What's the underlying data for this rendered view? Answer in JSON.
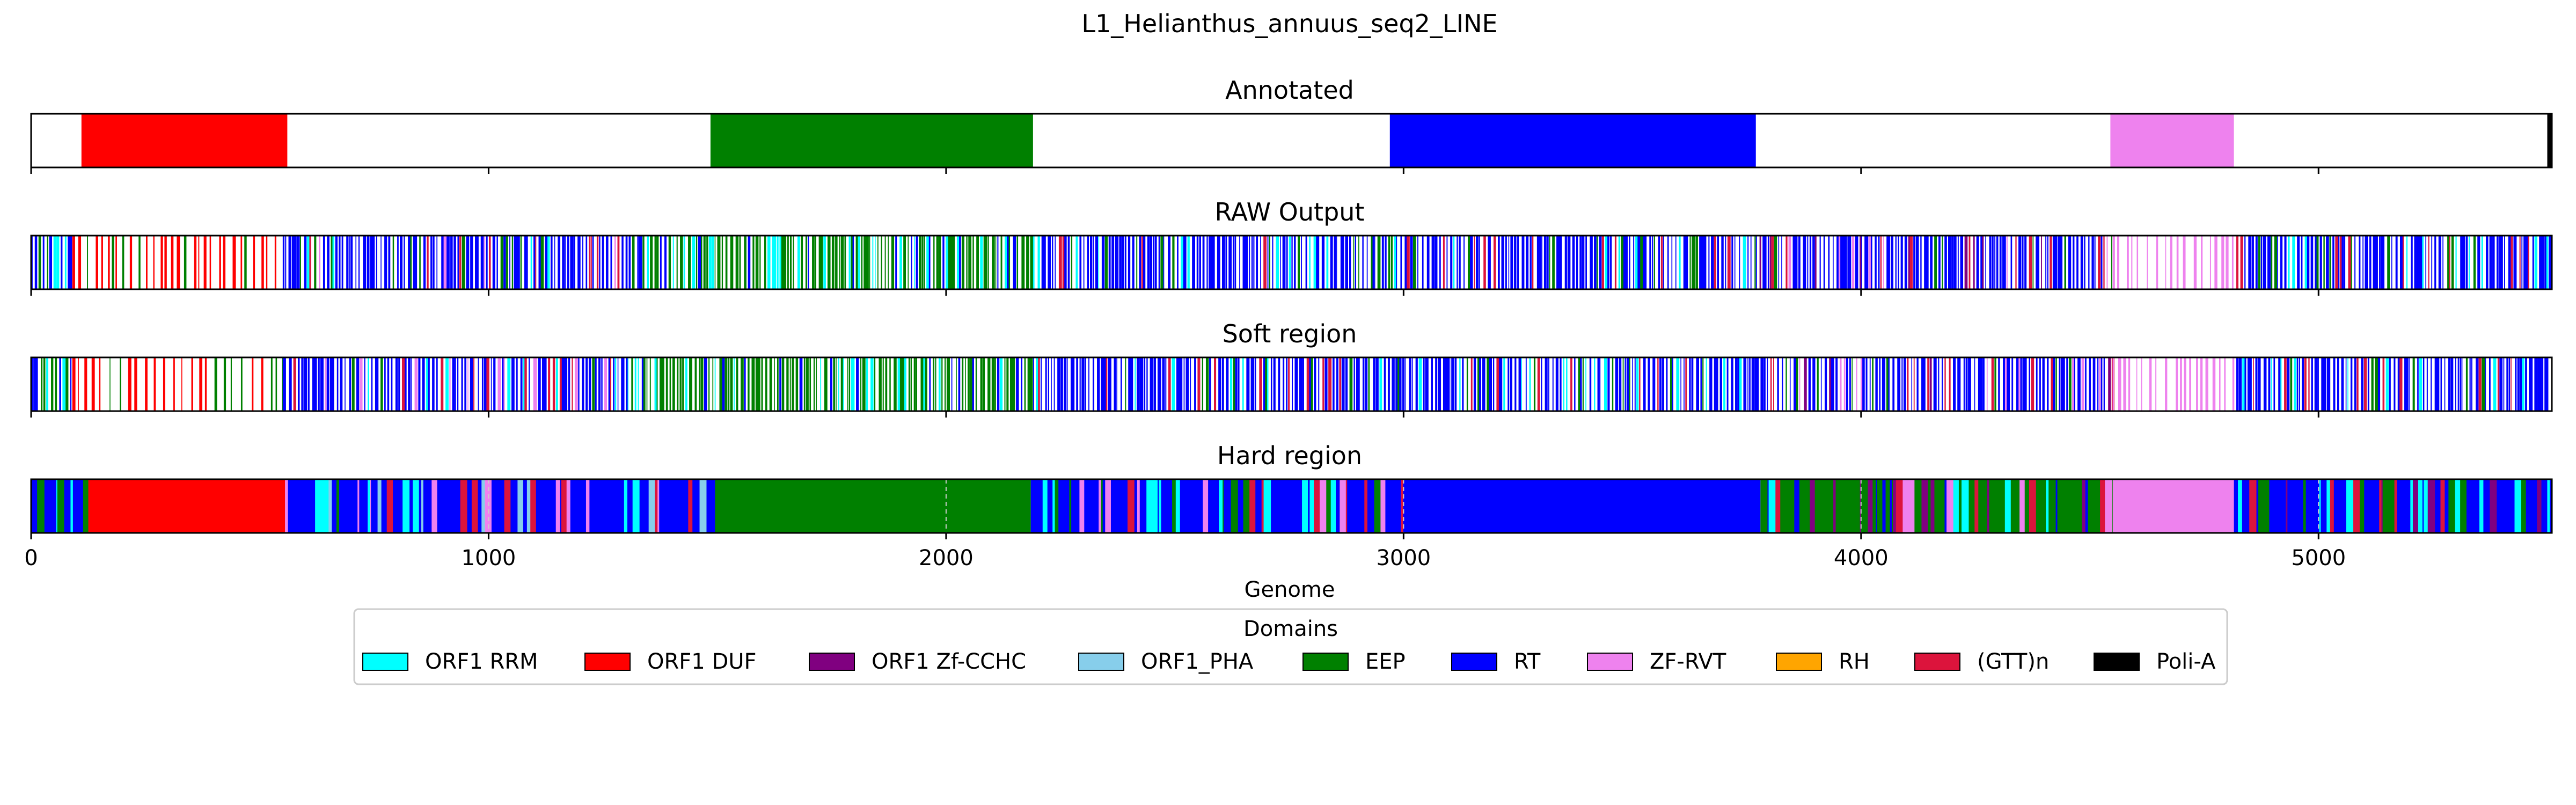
{
  "chart_data": {
    "type": "track",
    "title": "L1_Helianthus_annuus_seq2_LINE",
    "xlabel": "Genome",
    "xlim": [
      0,
      5510
    ],
    "xticks": [
      0,
      1000,
      2000,
      3000,
      4000,
      5000
    ],
    "tick_labels": [
      "0",
      "1000",
      "2000",
      "3000",
      "4000",
      "5000"
    ],
    "colors": {
      "ORF1 RRM": "#00ffff",
      "ORF1 DUF": "#ff0000",
      "ORF1 Zf-CCHC": "#800080",
      "ORF1_PHA": "#87ceeb",
      "EEP": "#008000",
      "RT": "#0000ff",
      "ZF-RVT": "#ee82ee",
      "RH": "#ffa500",
      "(GTT)n": "#dc143c",
      "Poli-A": "#000000"
    },
    "legend": {
      "title": "Domains",
      "placement": "bottom-center",
      "entries": [
        "ORF1 RRM",
        "ORF1 DUF",
        "ORF1 Zf-CCHC",
        "ORF1_PHA",
        "EEP",
        "RT",
        "ZF-RVT",
        "RH",
        "(GTT)n",
        "Poli-A"
      ]
    },
    "tracks": [
      {
        "title": "Annotated",
        "style": "segments",
        "segments": [
          {
            "domain": "ORF1 DUF",
            "start": 110,
            "end": 560
          },
          {
            "domain": "EEP",
            "start": 1485,
            "end": 2190
          },
          {
            "domain": "RT",
            "start": 2970,
            "end": 3770
          },
          {
            "domain": "ZF-RVT",
            "start": 4545,
            "end": 4815
          },
          {
            "domain": "Poli-A",
            "start": 5500,
            "end": 5510
          }
        ]
      },
      {
        "title": "RAW Output",
        "style": "sparse",
        "regions": [
          {
            "domain": "RT",
            "start": 0,
            "end": 90,
            "mix": [
              "ORF1 RRM",
              "EEP"
            ]
          },
          {
            "domain": "ORF1 DUF",
            "start": 90,
            "end": 550,
            "mix": [
              "EEP"
            ]
          },
          {
            "domain": "RT",
            "start": 550,
            "end": 1300,
            "mix": [
              "EEP",
              "ORF1 RRM",
              "ZF-RVT",
              "(GTT)n"
            ]
          },
          {
            "domain": "EEP",
            "start": 1300,
            "end": 2190,
            "mix": [
              "RT",
              "ORF1 RRM"
            ]
          },
          {
            "domain": "RT",
            "start": 2190,
            "end": 3770,
            "mix": [
              "EEP",
              "ORF1 RRM",
              "(GTT)n"
            ]
          },
          {
            "domain": "RT",
            "start": 3770,
            "end": 4550,
            "mix": [
              "EEP",
              "ZF-RVT",
              "(GTT)n",
              "ORF1 Zf-CCHC"
            ]
          },
          {
            "domain": "ZF-RVT",
            "start": 4550,
            "end": 4820,
            "mix": []
          },
          {
            "domain": "RT",
            "start": 4820,
            "end": 5510,
            "mix": [
              "EEP",
              "ORF1 RRM",
              "(GTT)n"
            ]
          }
        ]
      },
      {
        "title": "Soft region",
        "style": "sparse",
        "regions": [
          {
            "domain": "RT",
            "start": 0,
            "end": 90,
            "mix": [
              "ORF1 RRM",
              "EEP"
            ]
          },
          {
            "domain": "ORF1 DUF",
            "start": 90,
            "end": 550,
            "mix": [
              "EEP"
            ]
          },
          {
            "domain": "RT",
            "start": 550,
            "end": 1300,
            "mix": [
              "EEP",
              "ORF1 RRM",
              "ZF-RVT",
              "(GTT)n"
            ]
          },
          {
            "domain": "EEP",
            "start": 1300,
            "end": 2190,
            "mix": [
              "RT",
              "ORF1 RRM"
            ]
          },
          {
            "domain": "RT",
            "start": 2190,
            "end": 3770,
            "mix": [
              "EEP",
              "ORF1 RRM",
              "(GTT)n"
            ]
          },
          {
            "domain": "RT",
            "start": 3770,
            "end": 4550,
            "mix": [
              "EEP",
              "ZF-RVT",
              "(GTT)n",
              "ORF1 Zf-CCHC"
            ]
          },
          {
            "domain": "ZF-RVT",
            "start": 4550,
            "end": 4820,
            "mix": []
          },
          {
            "domain": "RT",
            "start": 4820,
            "end": 5510,
            "mix": [
              "EEP",
              "ORF1 RRM",
              "(GTT)n"
            ]
          }
        ]
      },
      {
        "title": "Hard region",
        "style": "dense",
        "solid_segments": [
          {
            "domain": "ORF1 DUF",
            "start": 125,
            "end": 555
          },
          {
            "domain": "EEP",
            "start": 1495,
            "end": 2185
          },
          {
            "domain": "RT",
            "start": 3000,
            "end": 3780
          },
          {
            "domain": "ZF-RVT",
            "start": 4550,
            "end": 4815
          }
        ],
        "mixed_regions": [
          {
            "domain": "RT",
            "start": 0,
            "end": 125,
            "mix": [
              "ORF1 RRM",
              "EEP"
            ]
          },
          {
            "domain": "RT",
            "start": 555,
            "end": 1495,
            "mix": [
              "EEP",
              "ORF1 RRM",
              "ZF-RVT",
              "(GTT)n",
              "ORF1_PHA"
            ]
          },
          {
            "domain": "RT",
            "start": 2185,
            "end": 3000,
            "mix": [
              "EEP",
              "ORF1 RRM",
              "(GTT)n",
              "ZF-RVT"
            ]
          },
          {
            "domain": "EEP",
            "start": 3780,
            "end": 4550,
            "mix": [
              "RT",
              "ZF-RVT",
              "(GTT)n",
              "ORF1 Zf-CCHC",
              "ORF1 RRM"
            ]
          },
          {
            "domain": "RT",
            "start": 4815,
            "end": 5510,
            "mix": [
              "EEP",
              "ORF1 RRM",
              "(GTT)n",
              "ORF1 Zf-CCHC"
            ]
          }
        ]
      }
    ]
  }
}
